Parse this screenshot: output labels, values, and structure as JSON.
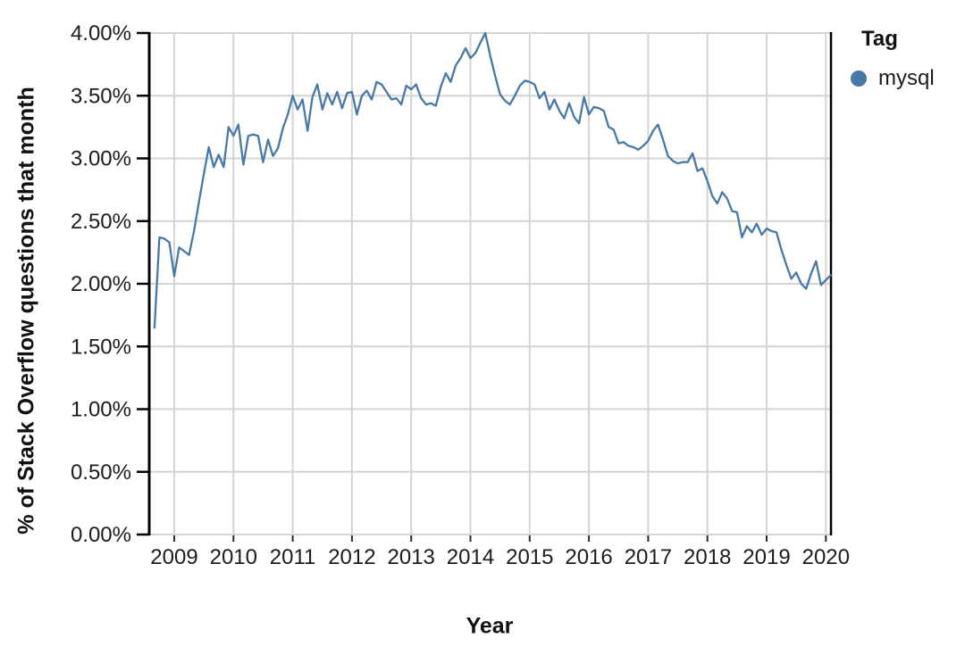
{
  "chart_data": {
    "type": "line",
    "title": "",
    "xlabel": "Year",
    "ylabel": "% of Stack Overflow questions that month",
    "grid": true,
    "ylim": [
      0,
      4.0
    ],
    "y_tick_step_percent": 0.5,
    "y_tick_labels": [
      "0.00%",
      "0.50%",
      "1.00%",
      "1.50%",
      "2.00%",
      "2.50%",
      "3.00%",
      "3.50%",
      "4.00%"
    ],
    "x_tick_labels": [
      "2009",
      "2010",
      "2011",
      "2012",
      "2013",
      "2014",
      "2015",
      "2016",
      "2017",
      "2018",
      "2019",
      "2020"
    ],
    "legend": {
      "title": "Tag",
      "position": "top-right",
      "items": [
        {
          "label": "mysql",
          "color": "#4878a8"
        }
      ]
    },
    "colors": {
      "line": "#4878a8",
      "gridline": "#d4d4d4",
      "axis": "#000000",
      "tick_text": "#1c1c1c"
    },
    "series": [
      {
        "name": "mysql",
        "color": "#4878a8",
        "points": [
          [
            "2008-09",
            1.65
          ],
          [
            "2008-10",
            2.37
          ],
          [
            "2008-11",
            2.36
          ],
          [
            "2008-12",
            2.33
          ],
          [
            "2009-01",
            2.06
          ],
          [
            "2009-02",
            2.29
          ],
          [
            "2009-03",
            2.26
          ],
          [
            "2009-04",
            2.23
          ],
          [
            "2009-05",
            2.42
          ],
          [
            "2009-06",
            2.65
          ],
          [
            "2009-07",
            2.88
          ],
          [
            "2009-08",
            3.09
          ],
          [
            "2009-09",
            2.93
          ],
          [
            "2009-10",
            3.03
          ],
          [
            "2009-11",
            2.93
          ],
          [
            "2009-12",
            3.25
          ],
          [
            "2010-01",
            3.18
          ],
          [
            "2010-02",
            3.27
          ],
          [
            "2010-03",
            2.95
          ],
          [
            "2010-04",
            3.18
          ],
          [
            "2010-05",
            3.19
          ],
          [
            "2010-06",
            3.18
          ],
          [
            "2010-07",
            2.97
          ],
          [
            "2010-08",
            3.15
          ],
          [
            "2010-09",
            3.02
          ],
          [
            "2010-10",
            3.08
          ],
          [
            "2010-11",
            3.24
          ],
          [
            "2010-12",
            3.35
          ],
          [
            "2011-01",
            3.5
          ],
          [
            "2011-02",
            3.39
          ],
          [
            "2011-03",
            3.47
          ],
          [
            "2011-04",
            3.22
          ],
          [
            "2011-05",
            3.49
          ],
          [
            "2011-06",
            3.59
          ],
          [
            "2011-07",
            3.39
          ],
          [
            "2011-08",
            3.52
          ],
          [
            "2011-09",
            3.43
          ],
          [
            "2011-10",
            3.53
          ],
          [
            "2011-11",
            3.4
          ],
          [
            "2011-12",
            3.52
          ],
          [
            "2012-01",
            3.53
          ],
          [
            "2012-02",
            3.35
          ],
          [
            "2012-03",
            3.5
          ],
          [
            "2012-04",
            3.54
          ],
          [
            "2012-05",
            3.47
          ],
          [
            "2012-06",
            3.61
          ],
          [
            "2012-07",
            3.59
          ],
          [
            "2012-08",
            3.53
          ],
          [
            "2012-09",
            3.47
          ],
          [
            "2012-10",
            3.48
          ],
          [
            "2012-11",
            3.43
          ],
          [
            "2012-12",
            3.58
          ],
          [
            "2013-01",
            3.55
          ],
          [
            "2013-02",
            3.59
          ],
          [
            "2013-03",
            3.48
          ],
          [
            "2013-04",
            3.43
          ],
          [
            "2013-05",
            3.44
          ],
          [
            "2013-06",
            3.42
          ],
          [
            "2013-07",
            3.57
          ],
          [
            "2013-08",
            3.68
          ],
          [
            "2013-09",
            3.61
          ],
          [
            "2013-10",
            3.74
          ],
          [
            "2013-11",
            3.8
          ],
          [
            "2013-12",
            3.88
          ],
          [
            "2014-01",
            3.8
          ],
          [
            "2014-02",
            3.84
          ],
          [
            "2014-03",
            3.92
          ],
          [
            "2014-04",
            4.0
          ],
          [
            "2014-05",
            3.82
          ],
          [
            "2014-06",
            3.66
          ],
          [
            "2014-07",
            3.51
          ],
          [
            "2014-08",
            3.46
          ],
          [
            "2014-09",
            3.43
          ],
          [
            "2014-10",
            3.5
          ],
          [
            "2014-11",
            3.58
          ],
          [
            "2014-12",
            3.62
          ],
          [
            "2015-01",
            3.61
          ],
          [
            "2015-02",
            3.59
          ],
          [
            "2015-03",
            3.48
          ],
          [
            "2015-04",
            3.53
          ],
          [
            "2015-05",
            3.39
          ],
          [
            "2015-06",
            3.47
          ],
          [
            "2015-07",
            3.38
          ],
          [
            "2015-08",
            3.32
          ],
          [
            "2015-09",
            3.44
          ],
          [
            "2015-10",
            3.33
          ],
          [
            "2015-11",
            3.28
          ],
          [
            "2015-12",
            3.49
          ],
          [
            "2016-01",
            3.35
          ],
          [
            "2016-02",
            3.41
          ],
          [
            "2016-03",
            3.4
          ],
          [
            "2016-04",
            3.38
          ],
          [
            "2016-05",
            3.25
          ],
          [
            "2016-06",
            3.23
          ],
          [
            "2016-07",
            3.12
          ],
          [
            "2016-08",
            3.13
          ],
          [
            "2016-09",
            3.1
          ],
          [
            "2016-10",
            3.09
          ],
          [
            "2016-11",
            3.07
          ],
          [
            "2016-12",
            3.1
          ],
          [
            "2017-01",
            3.14
          ],
          [
            "2017-02",
            3.22
          ],
          [
            "2017-03",
            3.27
          ],
          [
            "2017-04",
            3.15
          ],
          [
            "2017-05",
            3.02
          ],
          [
            "2017-06",
            2.98
          ],
          [
            "2017-07",
            2.96
          ],
          [
            "2017-08",
            2.97
          ],
          [
            "2017-09",
            2.97
          ],
          [
            "2017-10",
            3.04
          ],
          [
            "2017-11",
            2.9
          ],
          [
            "2017-12",
            2.92
          ],
          [
            "2018-01",
            2.82
          ],
          [
            "2018-02",
            2.7
          ],
          [
            "2018-03",
            2.64
          ],
          [
            "2018-04",
            2.73
          ],
          [
            "2018-05",
            2.68
          ],
          [
            "2018-06",
            2.58
          ],
          [
            "2018-07",
            2.57
          ],
          [
            "2018-08",
            2.37
          ],
          [
            "2018-09",
            2.46
          ],
          [
            "2018-10",
            2.41
          ],
          [
            "2018-11",
            2.48
          ],
          [
            "2018-12",
            2.39
          ],
          [
            "2019-01",
            2.44
          ],
          [
            "2019-02",
            2.42
          ],
          [
            "2019-03",
            2.41
          ],
          [
            "2019-04",
            2.27
          ],
          [
            "2019-05",
            2.15
          ],
          [
            "2019-06",
            2.04
          ],
          [
            "2019-07",
            2.09
          ],
          [
            "2019-08",
            2.0
          ],
          [
            "2019-09",
            1.96
          ],
          [
            "2019-10",
            2.08
          ],
          [
            "2019-11",
            2.18
          ],
          [
            "2019-12",
            1.99
          ],
          [
            "2020-01",
            2.03
          ],
          [
            "2020-02",
            2.07
          ]
        ]
      }
    ]
  }
}
